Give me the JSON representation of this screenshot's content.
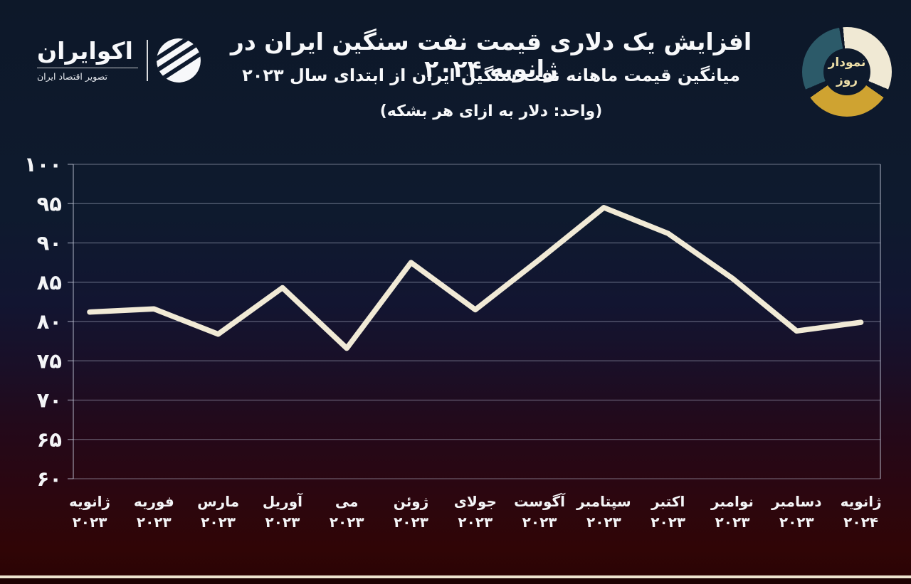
{
  "header": {
    "logo": {
      "name": "اکوایران",
      "tagline": "تصویر اقتصاد ایران"
    },
    "title": "افزایش یک دلاری قیمت نفت سنگین ایران در ژانویه ۲۰۲۴",
    "subtitle": "میانگین قیمت ماهانه نفت سنگین ایران از ابتدای سال ۲۰۲۳",
    "unit_note": "(واحد: دلار به ازای هر بشکه)",
    "badge": {
      "line1": "نمودار",
      "line2": "روز",
      "segment_colors": {
        "cream": "#f0e9d4",
        "gold": "#cfa331",
        "teal": "#2c5a69"
      },
      "label_color": "#eedfa8"
    }
  },
  "chart_data": {
    "type": "line",
    "title": "افزایش یک دلاری قیمت نفت سنگین ایران در ژانویه ۲۰۲۴",
    "subtitle": "میانگین قیمت ماهانه نفت سنگین ایران از ابتدای سال ۲۰۲۳",
    "unit": "دلار به ازای هر بشکه",
    "x": [
      "ژانویه ۲۰۲۳",
      "فوریه ۲۰۲۳",
      "مارس ۲۰۲۳",
      "آوریل ۲۰۲۳",
      "می ۲۰۲۳",
      "ژوئن ۲۰۲۳",
      "جولای ۲۰۲۳",
      "آگوست ۲۰۲۳",
      "سپتامبر ۲۰۲۳",
      "اکتبر ۲۰۲۳",
      "نوامبر ۲۰۲۳",
      "دسامبر ۲۰۲۳",
      "ژانویه ۲۰۲۴"
    ],
    "x_labels": [
      {
        "month": "ژانویه",
        "year": "۲۰۲۳"
      },
      {
        "month": "فوریه",
        "year": "۲۰۲۳"
      },
      {
        "month": "مارس",
        "year": "۲۰۲۳"
      },
      {
        "month": "آوریل",
        "year": "۲۰۲۳"
      },
      {
        "month": "می",
        "year": "۲۰۲۳"
      },
      {
        "month": "ژوئن",
        "year": "۲۰۲۳"
      },
      {
        "month": "جولای",
        "year": "۲۰۲۳"
      },
      {
        "month": "آگوست",
        "year": "۲۰۲۳"
      },
      {
        "month": "سپتامبر",
        "year": "۲۰۲۳"
      },
      {
        "month": "اکتبر",
        "year": "۲۰۲۳"
      },
      {
        "month": "نوامبر",
        "year": "۲۰۲۳"
      },
      {
        "month": "دسامبر",
        "year": "۲۰۲۳"
      },
      {
        "month": "ژانویه",
        "year": "۲۰۲۴"
      }
    ],
    "values": [
      81.2,
      81.6,
      78.4,
      84.3,
      76.6,
      87.5,
      81.5,
      87.9,
      94.5,
      91.2,
      85.5,
      78.8,
      79.9
    ],
    "ylim": [
      60,
      100
    ],
    "y_ticks": [
      {
        "v": 100,
        "label": "۱۰۰"
      },
      {
        "v": 95,
        "label": "۹۵"
      },
      {
        "v": 90,
        "label": "۹۰"
      },
      {
        "v": 85,
        "label": "۸۵"
      },
      {
        "v": 80,
        "label": "۸۰"
      },
      {
        "v": 75,
        "label": "۷۵"
      },
      {
        "v": 70,
        "label": "۷۰"
      },
      {
        "v": 65,
        "label": "۶۵"
      },
      {
        "v": 60,
        "label": "۶۰"
      }
    ],
    "grid": true,
    "legend": "none",
    "line_color": "#f1ead6",
    "grid_color": "rgba(185,190,210,0.45)",
    "axis_color": "rgba(200,206,222,0.55)",
    "label_color": "#f4f5f7"
  }
}
